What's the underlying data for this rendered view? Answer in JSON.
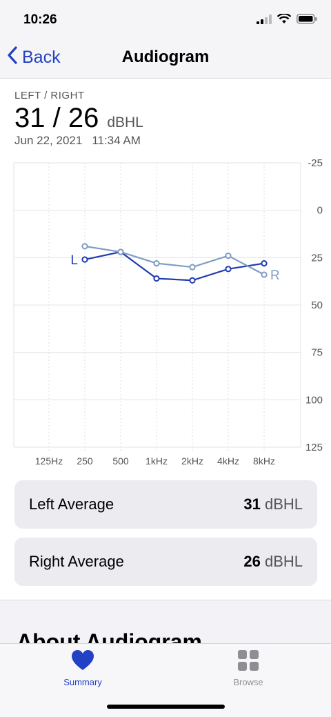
{
  "status_bar": {
    "time": "10:26"
  },
  "nav": {
    "back_label": "Back",
    "title": "Audiogram"
  },
  "summary": {
    "label": "LEFT / RIGHT",
    "value": "31 / 26",
    "unit": "dBHL",
    "date": "Jun 22, 2021",
    "time": "11:34 AM"
  },
  "chart_data": {
    "type": "line",
    "categories": [
      "125Hz",
      "250",
      "500",
      "1kHz",
      "2kHz",
      "4kHz",
      "8kHz"
    ],
    "y_ticks": [
      "-25",
      "0",
      "25",
      "50",
      "75",
      "100",
      "125"
    ],
    "ylim": [
      -25,
      125
    ],
    "y_inverted": true,
    "grid": true,
    "series": [
      {
        "name": "L",
        "color": "#1f3bb3",
        "values": [
          null,
          26,
          22,
          36,
          37,
          31,
          28
        ]
      },
      {
        "name": "R",
        "color": "#7f9cc3",
        "values": [
          null,
          19,
          22,
          28,
          30,
          24,
          34
        ]
      }
    ]
  },
  "averages": {
    "left": {
      "label": "Left Average",
      "value": "31",
      "unit": "dBHL"
    },
    "right": {
      "label": "Right Average",
      "value": "26",
      "unit": "dBHL"
    }
  },
  "about": {
    "title": "About Audiogram"
  },
  "tab_bar": {
    "summary": {
      "label": "Summary",
      "icon": "heart-icon",
      "color": "#2241c5"
    },
    "browse": {
      "label": "Browse",
      "icon": "grid-icon",
      "color": "#8e8e93"
    }
  }
}
